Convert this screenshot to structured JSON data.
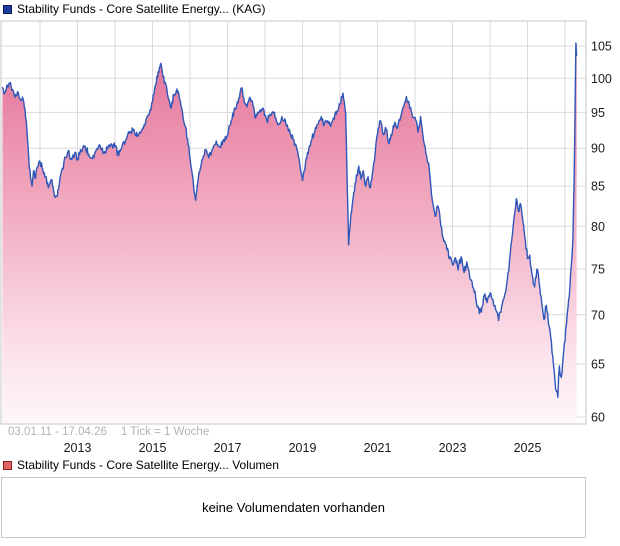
{
  "header": {
    "title": "Stability Funds - Core Satellite Energy... (KAG)",
    "marker_color": "#1f3da0",
    "marker_border": "#0d1c55"
  },
  "watermark": {
    "date_range": "03.01.11 - 17.04.26",
    "tick_info": "1 Tick = 1 Woche"
  },
  "volume": {
    "legend_label": "Stability Funds - Core Satellite Energy... Volumen",
    "marker_color": "#dd6565",
    "marker_border": "#8b1f1f",
    "message": "keine Volumendaten vorhanden"
  },
  "chart_data": {
    "type": "area",
    "title": "Stability Funds - Core Satellite Energy... (KAG)",
    "xlabel": "",
    "ylabel": "",
    "y_scale": "log",
    "y_ticks": [
      60,
      65,
      70,
      75,
      80,
      85,
      90,
      95,
      100,
      105
    ],
    "x_tick_labels": [
      "2013",
      "2015",
      "2017",
      "2019",
      "2021",
      "2023",
      "2025"
    ],
    "x_range_years": [
      2011.0,
      2026.55
    ],
    "ylim": [
      59.4,
      109.0
    ],
    "grid": true,
    "line_color": "#2f57b8",
    "fill_top_color": "#e27097",
    "fill_mid_color": "#f2adc2",
    "fill_bottom_color": "#fef7fa",
    "grid_color": "#dadada",
    "border_color": "#c6c6c6",
    "points": [
      [
        2011.0,
        98.6
      ],
      [
        2011.06,
        97.8
      ],
      [
        2011.12,
        99.0
      ],
      [
        2011.19,
        99.3
      ],
      [
        2011.25,
        98.2
      ],
      [
        2011.33,
        97.2
      ],
      [
        2011.4,
        98.0
      ],
      [
        2011.48,
        96.8
      ],
      [
        2011.55,
        96.9
      ],
      [
        2011.6,
        95.5
      ],
      [
        2011.65,
        92.5
      ],
      [
        2011.7,
        88.5
      ],
      [
        2011.75,
        86.0
      ],
      [
        2011.79,
        85.0
      ],
      [
        2011.83,
        87.0
      ],
      [
        2011.88,
        86.0
      ],
      [
        2011.93,
        87.5
      ],
      [
        2012.0,
        88.2
      ],
      [
        2012.08,
        87.0
      ],
      [
        2012.15,
        86.2
      ],
      [
        2012.22,
        84.8
      ],
      [
        2012.3,
        85.8
      ],
      [
        2012.37,
        84.2
      ],
      [
        2012.44,
        83.7
      ],
      [
        2012.52,
        85.5
      ],
      [
        2012.6,
        87.3
      ],
      [
        2012.68,
        88.8
      ],
      [
        2012.75,
        89.6
      ],
      [
        2012.83,
        88.6
      ],
      [
        2012.92,
        89.2
      ],
      [
        2013.0,
        88.6
      ],
      [
        2013.1,
        89.6
      ],
      [
        2013.2,
        90.3
      ],
      [
        2013.3,
        89.2
      ],
      [
        2013.4,
        88.6
      ],
      [
        2013.5,
        89.8
      ],
      [
        2013.6,
        90.4
      ],
      [
        2013.7,
        89.3
      ],
      [
        2013.8,
        89.9
      ],
      [
        2013.9,
        90.6
      ],
      [
        2014.0,
        90.2
      ],
      [
        2014.1,
        89.0
      ],
      [
        2014.2,
        90.5
      ],
      [
        2014.3,
        91.2
      ],
      [
        2014.4,
        92.3
      ],
      [
        2014.5,
        92.6
      ],
      [
        2014.6,
        91.6
      ],
      [
        2014.7,
        92.4
      ],
      [
        2014.8,
        93.2
      ],
      [
        2014.9,
        94.6
      ],
      [
        2015.0,
        96.5
      ],
      [
        2015.08,
        99.0
      ],
      [
        2015.15,
        101.0
      ],
      [
        2015.22,
        102.3
      ],
      [
        2015.28,
        100.2
      ],
      [
        2015.35,
        99.2
      ],
      [
        2015.42,
        97.0
      ],
      [
        2015.5,
        95.6
      ],
      [
        2015.57,
        97.6
      ],
      [
        2015.65,
        98.4
      ],
      [
        2015.72,
        97.0
      ],
      [
        2015.8,
        95.0
      ],
      [
        2015.88,
        93.0
      ],
      [
        2015.95,
        90.5
      ],
      [
        2016.02,
        87.8
      ],
      [
        2016.1,
        84.8
      ],
      [
        2016.15,
        83.2
      ],
      [
        2016.22,
        86.0
      ],
      [
        2016.3,
        87.8
      ],
      [
        2016.4,
        89.8
      ],
      [
        2016.5,
        88.7
      ],
      [
        2016.6,
        89.8
      ],
      [
        2016.7,
        91.0
      ],
      [
        2016.8,
        90.2
      ],
      [
        2016.9,
        91.2
      ],
      [
        2017.0,
        91.8
      ],
      [
        2017.1,
        93.8
      ],
      [
        2017.2,
        95.6
      ],
      [
        2017.3,
        97.0
      ],
      [
        2017.38,
        98.6
      ],
      [
        2017.45,
        96.4
      ],
      [
        2017.52,
        95.8
      ],
      [
        2017.6,
        97.2
      ],
      [
        2017.68,
        96.0
      ],
      [
        2017.75,
        94.2
      ],
      [
        2017.85,
        95.0
      ],
      [
        2017.95,
        95.6
      ],
      [
        2018.05,
        93.8
      ],
      [
        2018.15,
        94.6
      ],
      [
        2018.25,
        95.0
      ],
      [
        2018.35,
        93.2
      ],
      [
        2018.45,
        94.4
      ],
      [
        2018.55,
        93.6
      ],
      [
        2018.65,
        92.6
      ],
      [
        2018.75,
        91.2
      ],
      [
        2018.85,
        89.8
      ],
      [
        2018.95,
        87.0
      ],
      [
        2019.0,
        85.7
      ],
      [
        2019.08,
        88.0
      ],
      [
        2019.17,
        90.0
      ],
      [
        2019.25,
        91.2
      ],
      [
        2019.33,
        92.4
      ],
      [
        2019.42,
        93.4
      ],
      [
        2019.5,
        94.4
      ],
      [
        2019.58,
        93.2
      ],
      [
        2019.67,
        93.8
      ],
      [
        2019.75,
        93.0
      ],
      [
        2019.83,
        94.2
      ],
      [
        2019.92,
        95.2
      ],
      [
        2020.0,
        96.2
      ],
      [
        2020.08,
        97.8
      ],
      [
        2020.15,
        95.0
      ],
      [
        2020.19,
        86.0
      ],
      [
        2020.23,
        77.8
      ],
      [
        2020.29,
        81.5
      ],
      [
        2020.35,
        83.5
      ],
      [
        2020.42,
        85.6
      ],
      [
        2020.5,
        87.6
      ],
      [
        2020.56,
        85.9
      ],
      [
        2020.62,
        87.0
      ],
      [
        2020.69,
        85.0
      ],
      [
        2020.75,
        86.2
      ],
      [
        2020.81,
        84.8
      ],
      [
        2020.88,
        87.2
      ],
      [
        2020.94,
        89.5
      ],
      [
        2021.0,
        92.0
      ],
      [
        2021.08,
        93.8
      ],
      [
        2021.15,
        91.9
      ],
      [
        2021.23,
        92.6
      ],
      [
        2021.31,
        90.6
      ],
      [
        2021.38,
        91.8
      ],
      [
        2021.46,
        93.6
      ],
      [
        2021.54,
        92.9
      ],
      [
        2021.62,
        94.4
      ],
      [
        2021.69,
        95.8
      ],
      [
        2021.77,
        97.3
      ],
      [
        2021.85,
        96.0
      ],
      [
        2021.92,
        94.8
      ],
      [
        2022.0,
        94.3
      ],
      [
        2022.08,
        92.2
      ],
      [
        2022.15,
        94.4
      ],
      [
        2022.23,
        91.0
      ],
      [
        2022.31,
        89.0
      ],
      [
        2022.38,
        87.2
      ],
      [
        2022.46,
        83.2
      ],
      [
        2022.54,
        81.2
      ],
      [
        2022.62,
        82.4
      ],
      [
        2022.69,
        80.0
      ],
      [
        2022.77,
        78.2
      ],
      [
        2022.85,
        77.2
      ],
      [
        2022.92,
        76.2
      ],
      [
        2023.0,
        75.5
      ],
      [
        2023.08,
        76.3
      ],
      [
        2023.15,
        74.9
      ],
      [
        2023.23,
        76.4
      ],
      [
        2023.31,
        74.6
      ],
      [
        2023.38,
        75.8
      ],
      [
        2023.46,
        74.0
      ],
      [
        2023.54,
        73.0
      ],
      [
        2023.62,
        71.8
      ],
      [
        2023.7,
        70.6
      ],
      [
        2023.77,
        70.3
      ],
      [
        2023.85,
        72.1
      ],
      [
        2023.92,
        71.3
      ],
      [
        2024.0,
        72.3
      ],
      [
        2024.08,
        71.6
      ],
      [
        2024.15,
        70.6
      ],
      [
        2024.23,
        69.4
      ],
      [
        2024.31,
        70.9
      ],
      [
        2024.38,
        71.9
      ],
      [
        2024.46,
        73.8
      ],
      [
        2024.52,
        75.9
      ],
      [
        2024.58,
        78.3
      ],
      [
        2024.64,
        81.0
      ],
      [
        2024.7,
        83.4
      ],
      [
        2024.76,
        81.8
      ],
      [
        2024.81,
        82.8
      ],
      [
        2024.86,
        81.2
      ],
      [
        2024.92,
        79.0
      ],
      [
        2025.0,
        76.2
      ],
      [
        2025.06,
        76.6
      ],
      [
        2025.12,
        74.4
      ],
      [
        2025.19,
        73.0
      ],
      [
        2025.25,
        75.0
      ],
      [
        2025.31,
        73.5
      ],
      [
        2025.38,
        71.2
      ],
      [
        2025.44,
        69.5
      ],
      [
        2025.5,
        71.0
      ],
      [
        2025.56,
        69.0
      ],
      [
        2025.62,
        67.7
      ],
      [
        2025.69,
        65.0
      ],
      [
        2025.75,
        62.6
      ],
      [
        2025.81,
        61.8
      ],
      [
        2025.85,
        64.8
      ],
      [
        2025.9,
        63.7
      ],
      [
        2025.96,
        66.0
      ],
      [
        2026.02,
        68.5
      ],
      [
        2026.08,
        70.8
      ],
      [
        2026.13,
        73.0
      ],
      [
        2026.17,
        75.5
      ],
      [
        2026.21,
        78.5
      ],
      [
        2026.24,
        85.0
      ],
      [
        2026.27,
        96.0
      ],
      [
        2026.29,
        105.5
      ],
      [
        2026.31,
        103.5
      ]
    ]
  }
}
